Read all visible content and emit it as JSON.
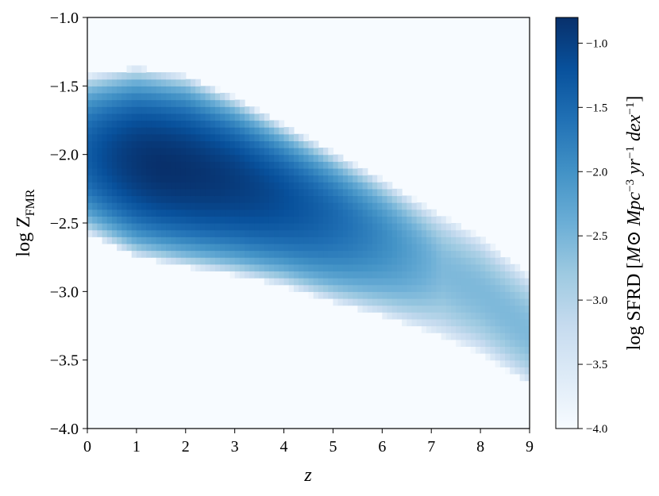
{
  "chart_data": {
    "type": "heatmap",
    "xlabel": "z",
    "ylabel": {
      "main": "log Z",
      "sub": "FMR"
    },
    "xlim": [
      0,
      9
    ],
    "ylim": [
      -4.0,
      -1.0
    ],
    "x_ticks": [
      0,
      1,
      2,
      3,
      4,
      5,
      6,
      7,
      8,
      9
    ],
    "y_ticks": [
      -4.0,
      -3.5,
      -3.0,
      -2.5,
      -2.0,
      -1.5,
      -1.0
    ],
    "x_tick_labels": [
      "0",
      "1",
      "2",
      "3",
      "4",
      "5",
      "6",
      "7",
      "8",
      "9"
    ],
    "y_tick_labels": [
      "−4.0",
      "−3.5",
      "−3.0",
      "−2.5",
      "−2.0",
      "−1.5",
      "−1.0"
    ],
    "colorbar": {
      "label": "log SFRD [M⊙ Mpc⁻³ yr⁻¹ dex⁻¹]",
      "label_parts": [
        {
          "text": "log SFRD [",
          "italic": false
        },
        {
          "text": "M",
          "italic": true
        },
        {
          "text": "⊙ ",
          "italic": false
        },
        {
          "text": "Mpc",
          "italic": true
        },
        {
          "text": "−3",
          "italic": false,
          "sup": true
        },
        {
          "text": " yr",
          "italic": true
        },
        {
          "text": "−1",
          "italic": false,
          "sup": true
        },
        {
          "text": " dex",
          "italic": true
        },
        {
          "text": "−1",
          "italic": false,
          "sup": true
        },
        {
          "text": "]",
          "italic": false
        }
      ],
      "range": [
        -4.0,
        -0.8
      ],
      "ticks": [
        -4.0,
        -3.5,
        -3.0,
        -2.5,
        -2.0,
        -1.5,
        -1.0
      ],
      "tick_labels": [
        "−4.0",
        "−3.5",
        "−3.0",
        "−2.5",
        "−2.0",
        "−1.5",
        "−1.0"
      ],
      "colormap": "Blues",
      "color_low": "#f7fbff",
      "color_high": "#08306b"
    },
    "ridge": {
      "description_units": "z vs log Z_FMR",
      "center": [
        {
          "z": 0.0,
          "logZ": -2.0
        },
        {
          "z": 1.0,
          "logZ": -2.05
        },
        {
          "z": 2.0,
          "logZ": -2.12
        },
        {
          "z": 3.0,
          "logZ": -2.2
        },
        {
          "z": 4.0,
          "logZ": -2.32
        },
        {
          "z": 5.0,
          "logZ": -2.45
        },
        {
          "z": 6.0,
          "logZ": -2.6
        },
        {
          "z": 7.0,
          "logZ": -2.78
        },
        {
          "z": 8.0,
          "logZ": -3.0
        },
        {
          "z": 9.0,
          "logZ": -3.3
        }
      ],
      "upper_edge": [
        {
          "z": 0.0,
          "logZ": -1.42
        },
        {
          "z": 1.0,
          "logZ": -1.36
        },
        {
          "z": 2.0,
          "logZ": -1.42
        },
        {
          "z": 3.0,
          "logZ": -1.58
        },
        {
          "z": 4.0,
          "logZ": -1.78
        },
        {
          "z": 5.0,
          "logZ": -1.98
        },
        {
          "z": 6.0,
          "logZ": -2.18
        },
        {
          "z": 7.0,
          "logZ": -2.4
        },
        {
          "z": 8.0,
          "logZ": -2.6
        },
        {
          "z": 9.0,
          "logZ": -2.88
        }
      ],
      "lower_edge": [
        {
          "z": 0.0,
          "logZ": -2.58
        },
        {
          "z": 1.0,
          "logZ": -2.75
        },
        {
          "z": 2.0,
          "logZ": -2.82
        },
        {
          "z": 3.0,
          "logZ": -2.88
        },
        {
          "z": 4.0,
          "logZ": -2.96
        },
        {
          "z": 5.0,
          "logZ": -3.08
        },
        {
          "z": 6.0,
          "logZ": -3.18
        },
        {
          "z": 7.0,
          "logZ": -3.3
        },
        {
          "z": 8.0,
          "logZ": -3.45
        },
        {
          "z": 9.0,
          "logZ": -3.68
        }
      ],
      "peak": {
        "z": 1.6,
        "logZ": -2.05,
        "value": -0.8
      }
    }
  }
}
